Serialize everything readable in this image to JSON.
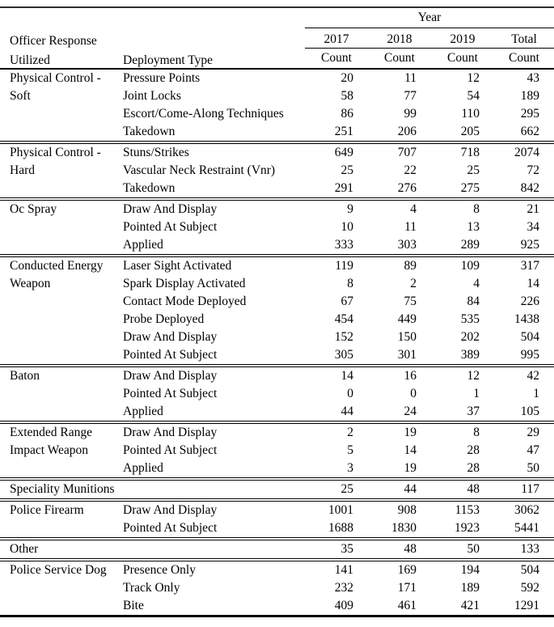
{
  "colors": {
    "background": "#ffffff",
    "text": "#000000",
    "rule": "#000000"
  },
  "table": {
    "header": {
      "year_group_label": "Year",
      "col1_label_line1": "Officer Response",
      "col1_label_line2": "Utilized",
      "col2_label": "Deployment Type",
      "year_columns": [
        "2017",
        "2018",
        "2019",
        "Total"
      ],
      "count_labels": [
        "Count",
        "Count",
        "Count",
        "Count"
      ]
    },
    "sections": [
      {
        "category": "Physical Control - Soft",
        "rows": [
          {
            "deployment_type": "Pressure Points",
            "counts": [
              20,
              11,
              12,
              43
            ]
          },
          {
            "deployment_type": "Joint Locks",
            "counts": [
              58,
              77,
              54,
              189
            ]
          },
          {
            "deployment_type": "Escort/Come-Along Techniques",
            "counts": [
              86,
              99,
              110,
              295
            ]
          },
          {
            "deployment_type": "Takedown",
            "counts": [
              251,
              206,
              205,
              662
            ]
          }
        ]
      },
      {
        "category": "Physical Control - Hard",
        "rows": [
          {
            "deployment_type": "Stuns/Strikes",
            "counts": [
              649,
              707,
              718,
              2074
            ]
          },
          {
            "deployment_type": "Vascular Neck Restraint (Vnr)",
            "counts": [
              25,
              22,
              25,
              72
            ]
          },
          {
            "deployment_type": "Takedown",
            "counts": [
              291,
              276,
              275,
              842
            ]
          }
        ]
      },
      {
        "category": "Oc Spray",
        "rows": [
          {
            "deployment_type": "Draw And Display",
            "counts": [
              9,
              4,
              8,
              21
            ]
          },
          {
            "deployment_type": "Pointed At Subject",
            "counts": [
              10,
              11,
              13,
              34
            ]
          },
          {
            "deployment_type": "Applied",
            "counts": [
              333,
              303,
              289,
              925
            ]
          }
        ]
      },
      {
        "category": "Conducted Energy Weapon",
        "rows": [
          {
            "deployment_type": "Laser Sight Activated",
            "counts": [
              119,
              89,
              109,
              317
            ]
          },
          {
            "deployment_type": "Spark Display Activated",
            "counts": [
              8,
              2,
              4,
              14
            ]
          },
          {
            "deployment_type": "Contact Mode Deployed",
            "counts": [
              67,
              75,
              84,
              226
            ]
          },
          {
            "deployment_type": "Probe Deployed",
            "counts": [
              454,
              449,
              535,
              1438
            ]
          },
          {
            "deployment_type": "Draw And Display",
            "counts": [
              152,
              150,
              202,
              504
            ]
          },
          {
            "deployment_type": "Pointed At Subject",
            "counts": [
              305,
              301,
              389,
              995
            ]
          }
        ]
      },
      {
        "category": "Baton",
        "rows": [
          {
            "deployment_type": "Draw And Display",
            "counts": [
              14,
              16,
              12,
              42
            ]
          },
          {
            "deployment_type": "Pointed At Subject",
            "counts": [
              0,
              0,
              1,
              1
            ]
          },
          {
            "deployment_type": "Applied",
            "counts": [
              44,
              24,
              37,
              105
            ]
          }
        ]
      },
      {
        "category": "Extended Range Impact Weapon",
        "rows": [
          {
            "deployment_type": "Draw And Display",
            "counts": [
              2,
              19,
              8,
              29
            ]
          },
          {
            "deployment_type": "Pointed At Subject",
            "counts": [
              5,
              14,
              28,
              47
            ]
          },
          {
            "deployment_type": "Applied",
            "counts": [
              3,
              19,
              28,
              50
            ]
          }
        ]
      },
      {
        "category": "Speciality Munitions",
        "rows": [
          {
            "deployment_type": null,
            "counts": [
              25,
              44,
              48,
              117
            ]
          }
        ]
      },
      {
        "category": "Police Firearm",
        "rows": [
          {
            "deployment_type": "Draw And Display",
            "counts": [
              1001,
              908,
              1153,
              3062
            ]
          },
          {
            "deployment_type": "Pointed At Subject",
            "counts": [
              1688,
              1830,
              1923,
              5441
            ]
          }
        ]
      },
      {
        "category": "Other",
        "rows": [
          {
            "deployment_type": null,
            "counts": [
              35,
              48,
              50,
              133
            ]
          }
        ]
      },
      {
        "category": "Police Service Dog",
        "rows": [
          {
            "deployment_type": "Presence Only",
            "counts": [
              141,
              169,
              194,
              504
            ]
          },
          {
            "deployment_type": "Track Only",
            "counts": [
              232,
              171,
              189,
              592
            ]
          },
          {
            "deployment_type": "Bite",
            "counts": [
              409,
              461,
              421,
              1291
            ]
          }
        ]
      }
    ]
  }
}
